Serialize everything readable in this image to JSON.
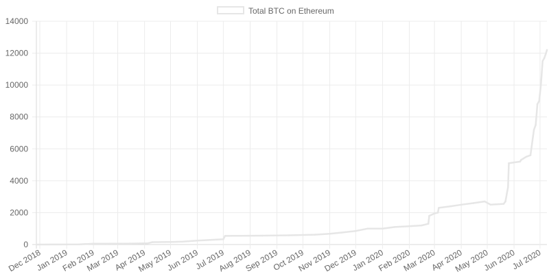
{
  "chart_data": {
    "type": "line",
    "title": "",
    "xlabel": "",
    "ylabel": "",
    "ylim": [
      0,
      14000
    ],
    "yticks": [
      0,
      2000,
      4000,
      6000,
      8000,
      10000,
      12000,
      14000
    ],
    "xticks": [
      "Dec 2018",
      "Jan 2019",
      "Feb 2019",
      "Mar 2019",
      "Apr 2019",
      "May 2019",
      "Jun 2019",
      "Jul 2019",
      "Aug 2019",
      "Sep 2019",
      "Oct 2019",
      "Nov 2019",
      "Dec 2019",
      "Jan 2020",
      "Feb 2020",
      "Mar 2020",
      "Apr 2020",
      "May 2020",
      "Jun 2020",
      "Jul 2020"
    ],
    "grid": true,
    "legend_position": "top-center",
    "colors": {
      "line": "#e6e6e6",
      "grid": "#ececec",
      "axis": "#d9d9d9",
      "text": "#666666"
    },
    "series": [
      {
        "name": "Total BTC on Ethereum",
        "x": [
          "2018-11-27",
          "2019-01-15",
          "2019-02-01",
          "2019-03-15",
          "2019-04-05",
          "2019-04-10",
          "2019-04-30",
          "2019-05-15",
          "2019-06-01",
          "2019-07-01",
          "2019-07-03",
          "2019-08-15",
          "2019-09-15",
          "2019-10-15",
          "2019-11-01",
          "2019-11-15",
          "2019-12-01",
          "2019-12-15",
          "2020-01-01",
          "2020-01-15",
          "2020-02-01",
          "2020-02-15",
          "2020-02-23",
          "2020-02-24",
          "2020-03-01",
          "2020-03-05",
          "2020-03-06",
          "2020-03-20",
          "2020-04-01",
          "2020-04-15",
          "2020-04-28",
          "2020-05-05",
          "2020-05-20",
          "2020-05-22",
          "2020-05-25",
          "2020-05-26",
          "2020-06-08",
          "2020-06-09",
          "2020-06-15",
          "2020-06-20",
          "2020-06-23",
          "2020-06-24",
          "2020-06-26",
          "2020-06-28",
          "2020-06-30",
          "2020-07-02",
          "2020-07-04",
          "2020-07-06",
          "2020-07-08",
          "2020-07-09"
        ],
        "values": [
          0,
          10,
          50,
          60,
          80,
          150,
          160,
          180,
          250,
          330,
          540,
          560,
          580,
          620,
          680,
          750,
          850,
          1000,
          1000,
          1100,
          1150,
          1200,
          1300,
          1800,
          1950,
          2000,
          2300,
          2400,
          2500,
          2600,
          2700,
          2500,
          2550,
          2700,
          3600,
          5100,
          5200,
          5300,
          5500,
          5600,
          6800,
          7200,
          7500,
          8800,
          9000,
          10000,
          11500,
          11700,
          12000,
          12200
        ]
      }
    ]
  }
}
